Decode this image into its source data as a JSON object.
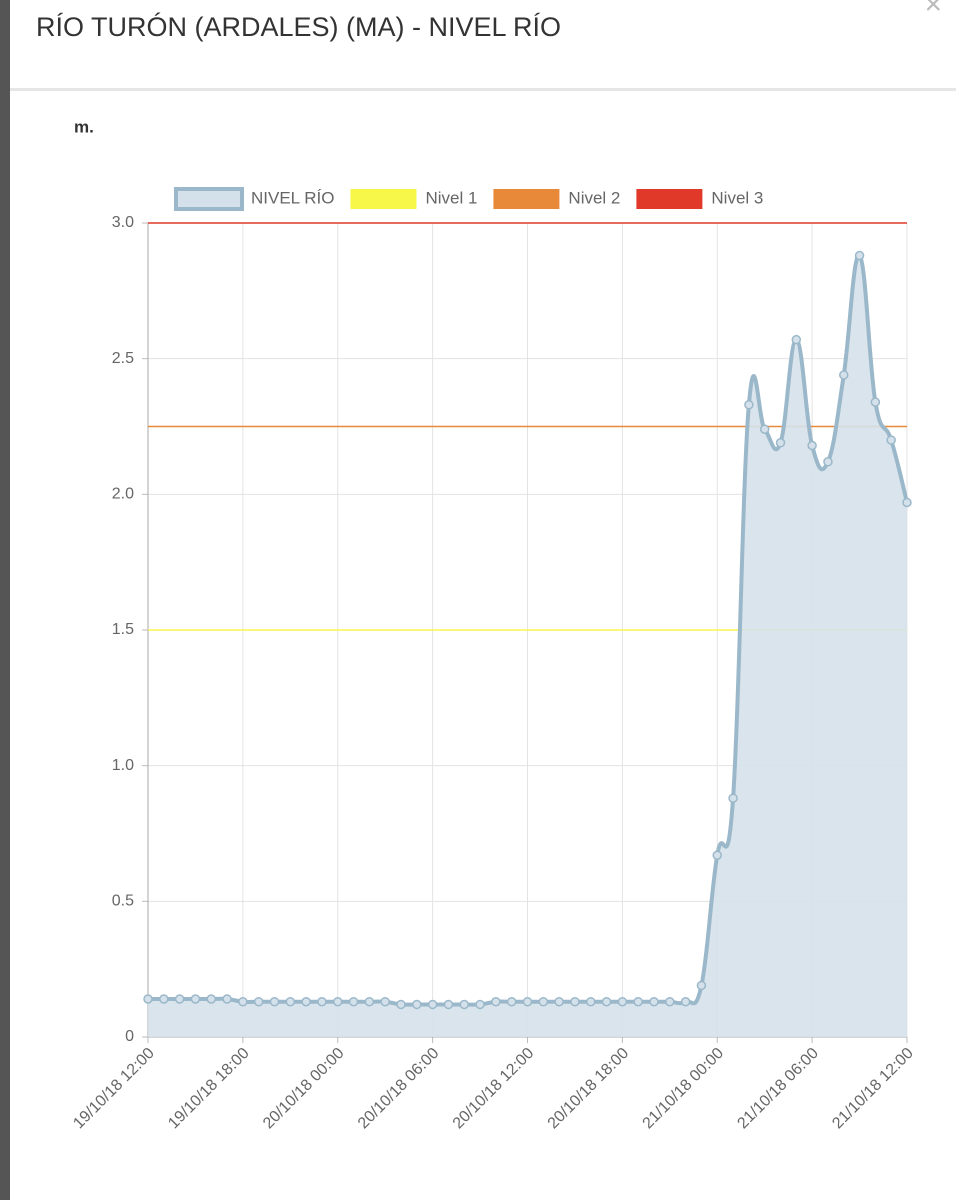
{
  "header": {
    "title": "RÍO TURÓN (ARDALES) (MA) - NIVEL RÍO",
    "close": "×"
  },
  "chart_data": {
    "type": "line",
    "y_label": "m.",
    "categories": [
      "19/10/18 12:00",
      null,
      null,
      null,
      null,
      null,
      "19/10/18 18:00",
      null,
      null,
      null,
      null,
      null,
      "20/10/18 00:00",
      null,
      null,
      null,
      null,
      null,
      "20/10/18 06:00",
      null,
      null,
      null,
      null,
      null,
      "20/10/18 12:00",
      null,
      null,
      null,
      null,
      null,
      "20/10/18 18:00",
      null,
      null,
      null,
      null,
      null,
      "21/10/18 00:00",
      null,
      null,
      null,
      null,
      null,
      "21/10/18 06:00",
      null,
      null,
      null,
      null,
      null,
      "21/10/18 12:00"
    ],
    "series": [
      {
        "name": "NIVEL RÍO",
        "color": "#9bb8ca",
        "fill": "#d5e1ea",
        "values": [
          0.14,
          0.14,
          0.14,
          0.14,
          0.14,
          0.14,
          0.13,
          0.13,
          0.13,
          0.13,
          0.13,
          0.13,
          0.13,
          0.13,
          0.13,
          0.13,
          0.12,
          0.12,
          0.12,
          0.12,
          0.12,
          0.12,
          0.13,
          0.13,
          0.13,
          0.13,
          0.13,
          0.13,
          0.13,
          0.13,
          0.13,
          0.13,
          0.13,
          0.13,
          0.13,
          0.19,
          0.67,
          0.88,
          2.33,
          2.24,
          2.19,
          2.57,
          2.18,
          2.12,
          2.44,
          2.88,
          2.34,
          2.2,
          1.97
        ]
      }
    ],
    "thresholds": [
      {
        "name": "Nivel 1",
        "color": "#f7f74a",
        "value": 1.5
      },
      {
        "name": "Nivel 2",
        "color": "#e8893a",
        "value": 2.25
      },
      {
        "name": "Nivel 3",
        "color": "#e0392a",
        "value": 3
      }
    ],
    "ylim": [
      0,
      3
    ],
    "yticks": [
      0,
      0.5,
      {
        "value": 1,
        "label": "1.0"
      },
      1.5,
      {
        "value": 2,
        "label": "2.0"
      },
      2.5,
      {
        "value": 3,
        "label": "3.0"
      }
    ],
    "grid": true,
    "legend": "top"
  }
}
